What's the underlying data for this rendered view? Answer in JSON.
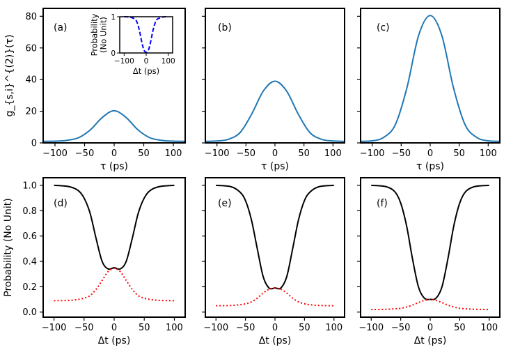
{
  "chart_data": [
    {
      "panel": "a",
      "type": "line",
      "label": "(a)",
      "xlabel": "τ (ps)",
      "ylabel": "g_{s,i}^{(2)}(τ)",
      "xlim": [
        -120,
        120
      ],
      "ylim": [
        0,
        85
      ],
      "xticks": [
        -100,
        -50,
        0,
        50,
        100
      ],
      "yticks": [
        0,
        20,
        40,
        60,
        80
      ],
      "series": [
        {
          "style": "solid",
          "color": "#1f77b4",
          "x": [
            -120,
            -100,
            -80,
            -60,
            -40,
            -20,
            0,
            20,
            40,
            60,
            80,
            100,
            120
          ],
          "y": [
            1,
            1.1,
            1.6,
            3.3,
            8.3,
            16.1,
            20.3,
            16.1,
            8.3,
            3.3,
            1.6,
            1.1,
            1
          ]
        }
      ],
      "inset": {
        "type": "line",
        "xlabel": "Δt (ps)",
        "ylabel": "Probability (No Unit)",
        "xlim": [
          -120,
          120
        ],
        "ylim": [
          0,
          1
        ],
        "xticks": [
          -100,
          0,
          100
        ],
        "yticks": [
          0,
          1
        ],
        "series": [
          {
            "style": "dashed",
            "color": "#0000ff",
            "x": [
              -100,
              -75,
              -50,
              -40,
              -30,
              -20,
              -10,
              0,
              10,
              20,
              30,
              40,
              50,
              75,
              100
            ],
            "y": [
              1,
              0.99,
              0.93,
              0.82,
              0.6,
              0.3,
              0.08,
              0.02,
              0.08,
              0.3,
              0.6,
              0.82,
              0.93,
              0.99,
              1
            ]
          }
        ]
      }
    },
    {
      "panel": "b",
      "type": "line",
      "label": "(b)",
      "xlabel": "τ (ps)",
      "xlim": [
        -120,
        120
      ],
      "ylim": [
        0,
        85
      ],
      "xticks": [
        -100,
        -50,
        0,
        50,
        100
      ],
      "yticks": [
        0,
        20,
        40,
        60,
        80
      ],
      "series": [
        {
          "style": "solid",
          "color": "#1f77b4",
          "x": [
            -120,
            -100,
            -80,
            -60,
            -40,
            -20,
            0,
            20,
            40,
            60,
            80,
            100,
            120
          ],
          "y": [
            1,
            1.2,
            2.3,
            6.6,
            18.3,
            32.8,
            39,
            32.8,
            18.3,
            6.6,
            2.3,
            1.2,
            1
          ]
        }
      ]
    },
    {
      "panel": "c",
      "type": "line",
      "label": "(c)",
      "xlabel": "τ (ps)",
      "xlim": [
        -120,
        120
      ],
      "ylim": [
        0,
        85
      ],
      "xticks": [
        -100,
        -50,
        0,
        50,
        100
      ],
      "yticks": [
        0,
        20,
        40,
        60,
        80
      ],
      "series": [
        {
          "style": "solid",
          "color": "#1f77b4",
          "x": [
            -120,
            -100,
            -80,
            -60,
            -40,
            -20,
            0,
            20,
            40,
            60,
            80,
            100,
            120
          ],
          "y": [
            1,
            1.3,
            3.5,
            11.6,
            35,
            67.9,
            80.5,
            67.9,
            35,
            11.6,
            3.5,
            1.3,
            1
          ]
        }
      ]
    },
    {
      "panel": "d",
      "type": "line",
      "label": "(d)",
      "xlabel": "Δt (ps)",
      "ylabel": "Probability (No Unit)",
      "xlim": [
        -118,
        118
      ],
      "ylim": [
        -0.04,
        1.06
      ],
      "xticks": [
        -100,
        -50,
        0,
        50,
        100
      ],
      "yticks": [
        0.0,
        0.2,
        0.4,
        0.6,
        0.8,
        1.0
      ],
      "series": [
        {
          "style": "solid",
          "color": "#000000",
          "x": [
            -100,
            -75,
            -60,
            -50,
            -40,
            -30,
            -20,
            -10,
            0,
            10,
            20,
            30,
            40,
            50,
            60,
            75,
            100
          ],
          "y": [
            1,
            0.99,
            0.96,
            0.9,
            0.78,
            0.58,
            0.4,
            0.34,
            0.35,
            0.34,
            0.4,
            0.58,
            0.78,
            0.9,
            0.96,
            0.99,
            1
          ]
        },
        {
          "style": "dotted",
          "color": "#ff0000",
          "x": [
            -100,
            -75,
            -60,
            -50,
            -40,
            -30,
            -20,
            -10,
            0,
            10,
            20,
            30,
            40,
            50,
            60,
            75,
            100
          ],
          "y": [
            0.09,
            0.092,
            0.1,
            0.11,
            0.13,
            0.18,
            0.25,
            0.32,
            0.345,
            0.32,
            0.25,
            0.18,
            0.13,
            0.11,
            0.1,
            0.092,
            0.09
          ]
        }
      ]
    },
    {
      "panel": "e",
      "type": "line",
      "label": "(e)",
      "xlabel": "Δt (ps)",
      "xlim": [
        -118,
        118
      ],
      "ylim": [
        -0.04,
        1.06
      ],
      "xticks": [
        -100,
        -50,
        0,
        50,
        100
      ],
      "yticks": [
        0.0,
        0.2,
        0.4,
        0.6,
        0.8,
        1.0
      ],
      "series": [
        {
          "style": "solid",
          "color": "#000000",
          "x": [
            -100,
            -75,
            -60,
            -50,
            -40,
            -30,
            -20,
            -10,
            0,
            10,
            20,
            30,
            40,
            50,
            60,
            75,
            100
          ],
          "y": [
            1,
            0.99,
            0.95,
            0.88,
            0.73,
            0.5,
            0.28,
            0.19,
            0.19,
            0.19,
            0.28,
            0.5,
            0.73,
            0.88,
            0.95,
            0.99,
            1
          ]
        },
        {
          "style": "dotted",
          "color": "#ff0000",
          "x": [
            -100,
            -75,
            -60,
            -50,
            -40,
            -30,
            -20,
            -10,
            0,
            10,
            20,
            30,
            40,
            50,
            60,
            75,
            100
          ],
          "y": [
            0.05,
            0.052,
            0.058,
            0.065,
            0.08,
            0.11,
            0.15,
            0.18,
            0.19,
            0.18,
            0.15,
            0.11,
            0.08,
            0.065,
            0.058,
            0.052,
            0.05
          ]
        }
      ]
    },
    {
      "panel": "f",
      "type": "line",
      "label": "(f)",
      "xlabel": "Δt (ps)",
      "xlim": [
        -118,
        118
      ],
      "ylim": [
        -0.04,
        1.06
      ],
      "xticks": [
        -100,
        -50,
        0,
        50,
        100
      ],
      "yticks": [
        0.0,
        0.2,
        0.4,
        0.6,
        0.8,
        1.0
      ],
      "series": [
        {
          "style": "solid",
          "color": "#000000",
          "x": [
            -100,
            -75,
            -60,
            -50,
            -40,
            -30,
            -20,
            -10,
            0,
            10,
            20,
            30,
            40,
            50,
            60,
            75,
            100
          ],
          "y": [
            1,
            0.99,
            0.95,
            0.86,
            0.68,
            0.42,
            0.2,
            0.11,
            0.1,
            0.11,
            0.2,
            0.42,
            0.68,
            0.86,
            0.95,
            0.99,
            1
          ]
        },
        {
          "style": "dotted",
          "color": "#ff0000",
          "x": [
            -100,
            -75,
            -60,
            -50,
            -40,
            -30,
            -20,
            -10,
            0,
            10,
            20,
            30,
            40,
            50,
            60,
            75,
            100
          ],
          "y": [
            0.02,
            0.022,
            0.026,
            0.03,
            0.04,
            0.055,
            0.075,
            0.092,
            0.1,
            0.092,
            0.075,
            0.055,
            0.04,
            0.03,
            0.026,
            0.022,
            0.02
          ]
        }
      ]
    }
  ]
}
